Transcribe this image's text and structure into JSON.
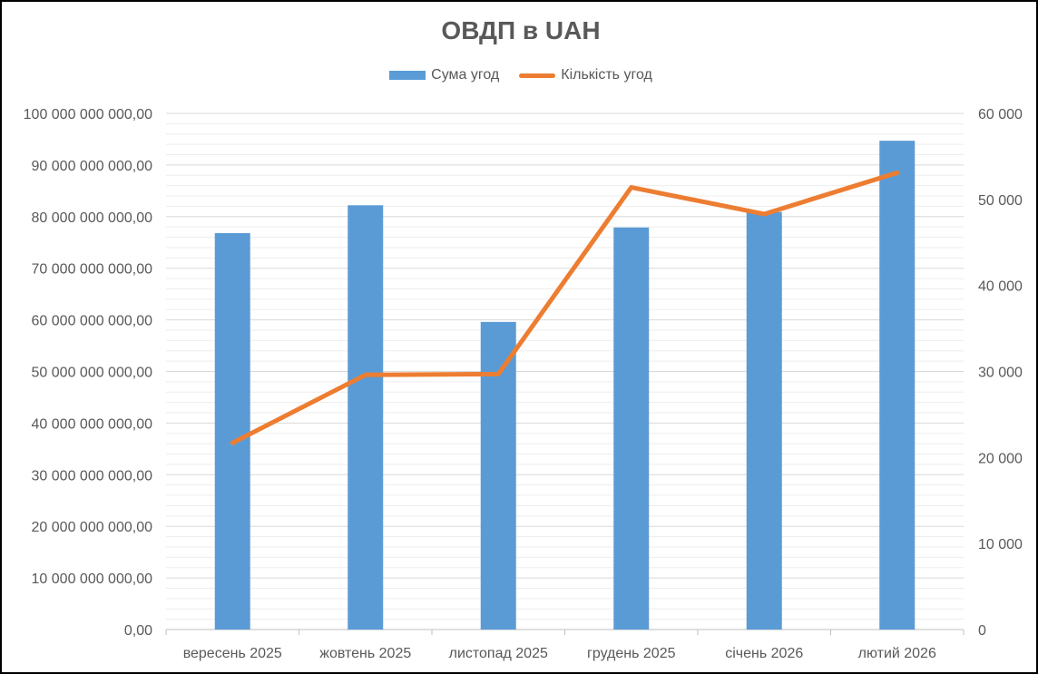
{
  "chart_data": {
    "type": "bar",
    "title": "ОВДП в UAH",
    "categories": [
      "вересень 2025",
      "жовтень 2025",
      "листопад 2025",
      "грудень 2025",
      "січень 2026",
      "лютий 2026"
    ],
    "series": [
      {
        "name": "Сума угод",
        "type": "bar",
        "axis": "left",
        "color": "#5B9BD5",
        "values": [
          76800000000,
          82200000000,
          59600000000,
          77900000000,
          80900000000,
          94700000000
        ]
      },
      {
        "name": "Кількість угод",
        "type": "line",
        "axis": "right",
        "color": "#ED7D31",
        "values": [
          21700,
          29600,
          29700,
          51400,
          48300,
          53100
        ]
      }
    ],
    "y_left": {
      "min": 0,
      "max": 100000000000,
      "ticks": [
        0,
        10000000000,
        20000000000,
        30000000000,
        40000000000,
        50000000000,
        60000000000,
        70000000000,
        80000000000,
        90000000000,
        100000000000
      ],
      "tick_labels": [
        "0,00",
        "10 000 000 000,00",
        "20 000 000 000,00",
        "30 000 000 000,00",
        "40 000 000 000,00",
        "50 000 000 000,00",
        "60 000 000 000,00",
        "70 000 000 000,00",
        "80 000 000 000,00",
        "90 000 000 000,00",
        "100 000 000 000,00"
      ]
    },
    "y_right": {
      "min": 0,
      "max": 60000,
      "ticks": [
        0,
        10000,
        20000,
        30000,
        40000,
        50000,
        60000
      ],
      "tick_labels": [
        "0",
        "10 000",
        "20 000",
        "30 000",
        "40 000",
        "50 000",
        "60 000"
      ]
    },
    "grid": "major and minor horizontal",
    "legend_position": "top"
  }
}
